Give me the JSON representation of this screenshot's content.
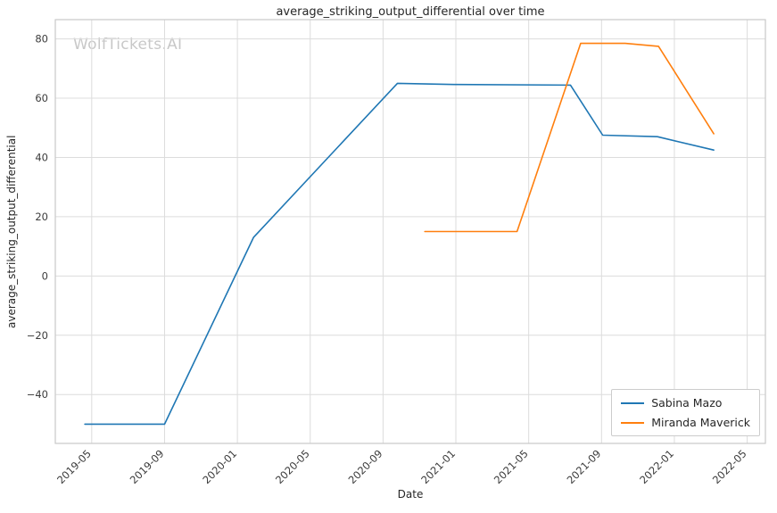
{
  "chart_data": {
    "type": "line",
    "title": "average_striking_output_differential over time",
    "xlabel": "Date",
    "ylabel": "average_striking_output_differential",
    "watermark": "WolfTickets.AI",
    "grid": true,
    "legend_position": "lower right",
    "x_ticks": [
      "2019-05",
      "2019-09",
      "2020-01",
      "2020-05",
      "2020-09",
      "2021-01",
      "2021-05",
      "2021-09",
      "2022-01",
      "2022-05"
    ],
    "y_ticks": [
      -40,
      -20,
      0,
      20,
      40,
      60,
      80
    ],
    "xlim": [
      "2019-03-01",
      "2022-06-01"
    ],
    "ylim": [
      -56.5,
      86.5
    ],
    "series": [
      {
        "name": "Sabina Mazo",
        "color": "#1f77b4",
        "points": [
          {
            "date": "2019-04-20",
            "value": -50
          },
          {
            "date": "2019-09-01",
            "value": -50
          },
          {
            "date": "2020-01-28",
            "value": 13
          },
          {
            "date": "2020-09-25",
            "value": 65
          },
          {
            "date": "2021-01-01",
            "value": 64.6
          },
          {
            "date": "2021-07-10",
            "value": 64.4
          },
          {
            "date": "2021-09-03",
            "value": 47.5
          },
          {
            "date": "2021-12-03",
            "value": 47
          },
          {
            "date": "2022-03-06",
            "value": 42.5
          }
        ]
      },
      {
        "name": "Miranda Maverick",
        "color": "#ff7f0e",
        "points": [
          {
            "date": "2020-11-10",
            "value": 15
          },
          {
            "date": "2021-04-12",
            "value": 15
          },
          {
            "date": "2021-07-27",
            "value": 78.5
          },
          {
            "date": "2021-10-10",
            "value": 78.5
          },
          {
            "date": "2021-12-05",
            "value": 77.5
          },
          {
            "date": "2022-03-06",
            "value": 48
          }
        ]
      }
    ]
  }
}
